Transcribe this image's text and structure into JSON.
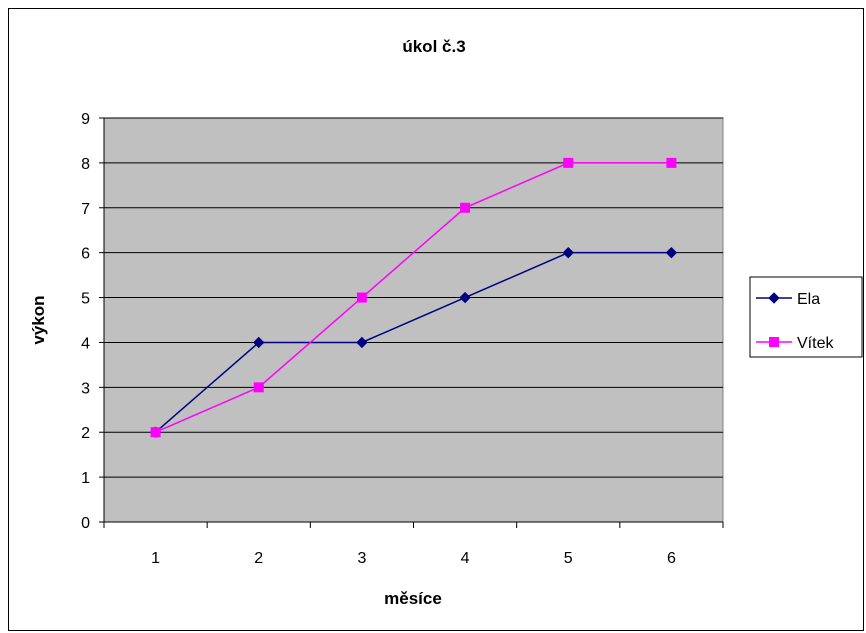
{
  "chart_data": {
    "type": "line",
    "title": "úkol č.3",
    "xlabel": "měsíce",
    "ylabel": "výkon",
    "categories": [
      "1",
      "2",
      "3",
      "4",
      "5",
      "6"
    ],
    "ylim": [
      0,
      9
    ],
    "yticks": [
      "0",
      "1",
      "2",
      "3",
      "4",
      "5",
      "6",
      "7",
      "8",
      "9"
    ],
    "grid": true,
    "plot_background": "#c0c0c0",
    "legend_position": "right",
    "series": [
      {
        "name": "Ela",
        "values": [
          2,
          4,
          4,
          5,
          6,
          6
        ],
        "color": "#000080",
        "marker": "diamond"
      },
      {
        "name": "Vítek",
        "values": [
          2,
          3,
          5,
          7,
          8,
          8
        ],
        "color": "#ff00ff",
        "marker": "square"
      }
    ]
  }
}
